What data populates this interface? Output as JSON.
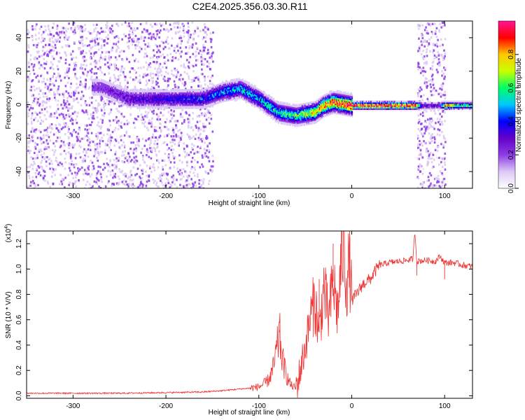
{
  "title": "C2E4.2025.356.03.30.R11",
  "chart_data": [
    {
      "type": "heatmap",
      "name": "spectrogram",
      "xlabel": "Height of straight line (km)",
      "ylabel": "Frequency (Hz)",
      "xlim": [
        -350,
        130
      ],
      "ylim": [
        -50,
        50
      ],
      "xticks": [
        -300,
        -200,
        -100,
        0,
        100
      ],
      "xtick_labels": [
        "-300",
        "-200",
        "-100",
        "0",
        "100"
      ],
      "yticks": [
        -40,
        -20,
        0,
        20,
        40
      ],
      "ytick_labels": [
        "-40",
        "-20",
        "0",
        "20",
        "40"
      ],
      "colorbar": {
        "label": "Normalized spectral amplitude",
        "range": [
          0,
          1
        ],
        "ticks": [
          0.0,
          0.2,
          0.4,
          0.6,
          0.8
        ],
        "tick_labels": [
          "0.0",
          "0.2",
          "0.4",
          "0.6",
          "0.8"
        ],
        "colors": [
          "#ffffff",
          "#dcc8f5",
          "#8c3ce6",
          "#6400c8",
          "#0000ff",
          "#00c8ff",
          "#00ff64",
          "#c8ff00",
          "#ffc800",
          "#ff0000",
          "#ff1493"
        ]
      },
      "ridge": {
        "x": [
          -270,
          -240,
          -200,
          -160,
          -140,
          -120,
          -100,
          -80,
          -60,
          -40,
          -30,
          -20,
          -10,
          0,
          20,
          40,
          60,
          68,
          75,
          95,
          100,
          110,
          130
        ],
        "y": [
          11,
          4,
          4,
          4,
          8,
          10,
          4,
          -4,
          -6,
          -4,
          0,
          2,
          1,
          0,
          0,
          0,
          0,
          0,
          0,
          0,
          0,
          0,
          0
        ],
        "peak_amplitude": [
          0.22,
          0.3,
          0.35,
          0.4,
          0.45,
          0.5,
          0.5,
          0.55,
          0.6,
          0.75,
          0.8,
          0.9,
          0.9,
          0.95,
          0.95,
          0.95,
          0.95,
          0.95,
          0.3,
          0.3,
          0.9,
          0.6,
          0.6
        ]
      },
      "noise_regions": [
        {
          "x_range": [
            -350,
            -150
          ],
          "y_range": [
            -50,
            50
          ],
          "amplitude": 0.15
        },
        {
          "x_range": [
            70,
            100
          ],
          "y_range": [
            -50,
            50
          ],
          "amplitude": 0.15
        }
      ]
    },
    {
      "type": "line",
      "name": "snr",
      "xlabel": "Height of straight line (km)",
      "ylabel": "SNR (10 * V/V)",
      "multiplier_label": "(x10",
      "multiplier_exponent": "4",
      "multiplier_suffix": ")",
      "xlim": [
        -350,
        130
      ],
      "ylim": [
        -0.02,
        1.3
      ],
      "xticks": [
        -300,
        -200,
        -100,
        0,
        100
      ],
      "xtick_labels": [
        "-300",
        "-200",
        "-100",
        "0",
        "100"
      ],
      "yticks": [
        0.0,
        0.2,
        0.4,
        0.6,
        0.8,
        1.0,
        1.2
      ],
      "ytick_labels": [
        "0.0",
        "0.2",
        "0.4",
        "0.6",
        "0.8",
        "1.0",
        "1.2"
      ],
      "color": "#ee3333",
      "series": [
        {
          "name": "SNR",
          "x": [
            -350,
            -300,
            -250,
            -200,
            -160,
            -140,
            -125,
            -110,
            -100,
            -95,
            -90,
            -85,
            -80,
            -78,
            -75,
            -70,
            -65,
            -60,
            -58,
            -55,
            -50,
            -45,
            -40,
            -35,
            -30,
            -25,
            -20,
            -15,
            -10,
            -5,
            -2,
            0,
            5,
            10,
            15,
            20,
            25,
            30,
            40,
            50,
            60,
            66,
            68,
            70,
            80,
            90,
            95,
            100,
            110,
            120,
            130
          ],
          "values": [
            0.02,
            0.02,
            0.02,
            0.025,
            0.03,
            0.04,
            0.05,
            0.06,
            0.07,
            0.09,
            0.12,
            0.2,
            0.38,
            0.5,
            0.3,
            0.15,
            0.08,
            0.06,
            0.1,
            0.22,
            0.38,
            0.6,
            0.75,
            0.5,
            0.85,
            0.6,
            0.9,
            0.65,
            1.2,
            0.9,
            1.05,
            0.75,
            0.8,
            0.86,
            0.9,
            0.92,
            0.98,
            1.03,
            1.05,
            1.06,
            1.07,
            1.08,
            1.3,
            1.06,
            1.07,
            1.06,
            1.1,
            1.05,
            1.05,
            1.03,
            1.02
          ],
          "spikes": [
            [
              -78,
              0.52
            ],
            [
              -35,
              0.92
            ],
            [
              -20,
              1.2
            ],
            [
              -2,
              1.25
            ],
            [
              68,
              1.3
            ],
            [
              70,
              0.95
            ],
            [
              100,
              0.92
            ]
          ]
        }
      ]
    }
  ]
}
